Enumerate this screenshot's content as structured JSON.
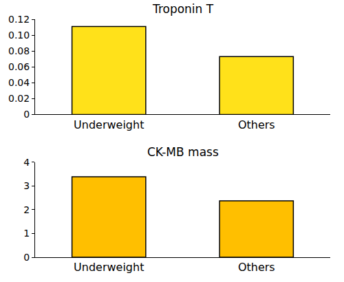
{
  "chart_data": [
    {
      "type": "bar",
      "title": "Troponin T",
      "categories": [
        "Underweight",
        "Others"
      ],
      "values": [
        0.111,
        0.073
      ],
      "color": "#ffe11a",
      "ylim": [
        0,
        0.12
      ],
      "yticks": [
        0,
        0.02,
        0.04,
        0.06,
        0.08,
        {
          "value": 0.1,
          "label": "0.10"
        },
        0.12
      ],
      "grid": false
    },
    {
      "type": "bar",
      "title": "CK-MB mass",
      "categories": [
        "Underweight",
        "Others"
      ],
      "values": [
        3.38,
        2.37
      ],
      "color": "#ffbf00",
      "ylim": [
        0,
        4
      ],
      "yticks": [
        0,
        1,
        2,
        3,
        4
      ],
      "grid": false
    }
  ]
}
